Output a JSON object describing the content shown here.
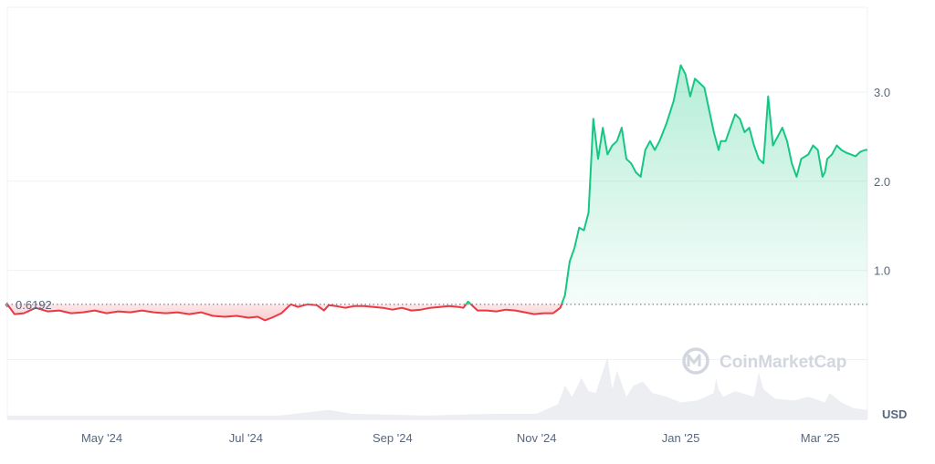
{
  "chart_data": {
    "type": "line",
    "title": "",
    "xlabel": "",
    "ylabel": "",
    "currency": "USD",
    "watermark": "CoinMarketCap",
    "reference": {
      "value": 0.6192,
      "label": "0.6192"
    },
    "xlim": [
      "2024-03-22",
      "2025-03-21"
    ],
    "ylim": [
      -0.67,
      3.95
    ],
    "y_ticks": [
      {
        "value": 1.0,
        "label": "1.0"
      },
      {
        "value": 2.0,
        "label": "2.0"
      },
      {
        "value": 3.0,
        "label": "3.0"
      }
    ],
    "x_ticks": [
      {
        "date": "2024-05-01",
        "label": "May '24"
      },
      {
        "date": "2024-07-01",
        "label": "Jul '24"
      },
      {
        "date": "2024-09-01",
        "label": "Sep '24"
      },
      {
        "date": "2024-11-01",
        "label": "Nov '24"
      },
      {
        "date": "2025-01-01",
        "label": "Jan '25"
      },
      {
        "date": "2025-03-01",
        "label": "Mar '25"
      }
    ],
    "grid": true,
    "colors": {
      "above": "#16c784",
      "below": "#ea3943",
      "grid": "#eff2f5",
      "text": "#58667e",
      "volume": "#eceef2"
    },
    "series": [
      {
        "x": [
          "2024-03-22",
          "2024-03-25",
          "2024-03-29",
          "2024-04-03",
          "2024-04-08",
          "2024-04-13",
          "2024-04-18",
          "2024-04-23",
          "2024-04-28",
          "2024-05-03",
          "2024-05-08",
          "2024-05-13",
          "2024-05-18",
          "2024-05-23",
          "2024-05-28",
          "2024-06-02",
          "2024-06-07",
          "2024-06-12",
          "2024-06-17",
          "2024-06-22",
          "2024-06-27",
          "2024-07-02",
          "2024-07-06",
          "2024-07-09",
          "2024-07-12",
          "2024-07-16",
          "2024-07-20",
          "2024-07-23",
          "2024-07-27",
          "2024-07-31",
          "2024-08-03",
          "2024-08-05",
          "2024-08-08",
          "2024-08-12",
          "2024-08-16",
          "2024-08-20",
          "2024-08-24",
          "2024-08-28",
          "2024-09-01",
          "2024-09-05",
          "2024-09-09",
          "2024-09-13",
          "2024-09-17",
          "2024-09-21",
          "2024-09-25",
          "2024-09-29",
          "2024-10-01",
          "2024-10-03",
          "2024-10-07",
          "2024-10-11",
          "2024-10-15",
          "2024-10-19",
          "2024-10-23",
          "2024-10-27",
          "2024-10-31",
          "2024-11-04",
          "2024-11-08",
          "2024-11-11",
          "2024-11-13",
          "2024-11-15",
          "2024-11-17",
          "2024-11-19",
          "2024-11-21",
          "2024-11-23",
          "2024-11-25",
          "2024-11-27",
          "2024-11-29",
          "2024-12-01",
          "2024-12-03",
          "2024-12-05",
          "2024-12-07",
          "2024-12-09",
          "2024-12-11",
          "2024-12-13",
          "2024-12-15",
          "2024-12-17",
          "2024-12-19",
          "2024-12-21",
          "2024-12-23",
          "2024-12-26",
          "2024-12-29",
          "2025-01-01",
          "2025-01-03",
          "2025-01-05",
          "2025-01-07",
          "2025-01-09",
          "2025-01-11",
          "2025-01-13",
          "2025-01-15",
          "2025-01-16",
          "2025-01-17",
          "2025-01-18",
          "2025-01-20",
          "2025-01-22",
          "2025-01-24",
          "2025-01-26",
          "2025-01-28",
          "2025-01-30",
          "2025-02-01",
          "2025-02-03",
          "2025-02-05",
          "2025-02-07",
          "2025-02-09",
          "2025-02-11",
          "2025-02-13",
          "2025-02-15",
          "2025-02-17",
          "2025-02-19",
          "2025-02-21",
          "2025-02-24",
          "2025-02-26",
          "2025-02-28",
          "2025-03-01",
          "2025-03-02",
          "2025-03-03",
          "2025-03-04",
          "2025-03-06",
          "2025-03-08",
          "2025-03-10",
          "2025-03-12",
          "2025-03-14",
          "2025-03-16",
          "2025-03-18",
          "2025-03-20",
          "2025-03-21"
        ],
        "y": [
          0.62,
          0.51,
          0.52,
          0.58,
          0.54,
          0.55,
          0.52,
          0.53,
          0.55,
          0.52,
          0.54,
          0.53,
          0.55,
          0.53,
          0.52,
          0.53,
          0.51,
          0.53,
          0.49,
          0.48,
          0.49,
          0.47,
          0.48,
          0.44,
          0.47,
          0.52,
          0.62,
          0.59,
          0.62,
          0.61,
          0.55,
          0.61,
          0.6,
          0.58,
          0.6,
          0.6,
          0.59,
          0.58,
          0.56,
          0.58,
          0.55,
          0.56,
          0.58,
          0.59,
          0.6,
          0.59,
          0.58,
          0.65,
          0.55,
          0.55,
          0.54,
          0.56,
          0.55,
          0.53,
          0.51,
          0.52,
          0.52,
          0.58,
          0.72,
          1.1,
          1.25,
          1.48,
          1.45,
          1.65,
          2.7,
          2.25,
          2.6,
          2.3,
          2.4,
          2.45,
          2.6,
          2.25,
          2.2,
          2.1,
          2.05,
          2.35,
          2.45,
          2.35,
          2.45,
          2.65,
          2.9,
          3.3,
          3.2,
          2.95,
          3.15,
          3.1,
          3.05,
          2.8,
          2.55,
          2.45,
          2.35,
          2.45,
          2.45,
          2.6,
          2.75,
          2.7,
          2.55,
          2.6,
          2.4,
          2.25,
          2.2,
          2.95,
          2.4,
          2.5,
          2.6,
          2.45,
          2.2,
          2.05,
          2.25,
          2.3,
          2.4,
          2.35,
          2.2,
          2.05,
          2.1,
          2.25,
          2.3,
          2.4,
          2.35,
          2.32,
          2.3,
          2.28,
          2.33,
          2.35,
          2.35
        ]
      }
    ],
    "volume": {
      "x": [
        "2024-03-22",
        "2024-04-15",
        "2024-05-15",
        "2024-06-15",
        "2024-07-15",
        "2024-08-05",
        "2024-08-15",
        "2024-09-15",
        "2024-10-15",
        "2024-11-01",
        "2024-11-10",
        "2024-11-13",
        "2024-11-16",
        "2024-11-20",
        "2024-11-23",
        "2024-11-26",
        "2024-12-01",
        "2024-12-03",
        "2024-12-05",
        "2024-12-09",
        "2024-12-12",
        "2024-12-16",
        "2024-12-20",
        "2024-12-26",
        "2025-01-01",
        "2025-01-08",
        "2025-01-15",
        "2025-01-16",
        "2025-01-17",
        "2025-01-19",
        "2025-01-24",
        "2025-02-01",
        "2025-02-03",
        "2025-02-05",
        "2025-02-10",
        "2025-02-18",
        "2025-02-24",
        "2025-03-03",
        "2025-03-05",
        "2025-03-10",
        "2025-03-15",
        "2025-03-21"
      ],
      "y": [
        0.2,
        0.2,
        0.2,
        0.2,
        0.2,
        0.5,
        0.3,
        0.2,
        0.3,
        0.3,
        0.8,
        1.8,
        1.2,
        2.2,
        1.5,
        1.4,
        3.3,
        1.6,
        2.6,
        1.2,
        1.8,
        2.0,
        1.4,
        1.2,
        0.9,
        1.0,
        1.4,
        2.2,
        1.6,
        1.2,
        1.5,
        1.2,
        2.5,
        1.6,
        1.1,
        1.0,
        1.2,
        0.9,
        1.4,
        0.9,
        0.6,
        0.5
      ]
    }
  }
}
